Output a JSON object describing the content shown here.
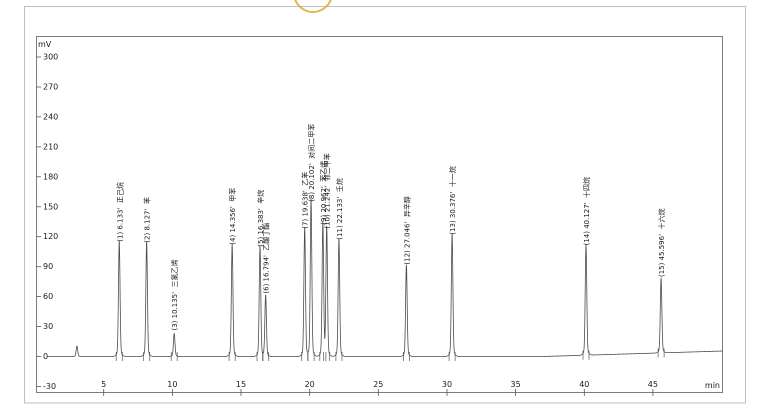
{
  "page": {
    "watermark_color": "#d9b43e",
    "trace_color": "#4d4d4d",
    "frame_color": "#bfbfbf"
  },
  "chart_data": {
    "type": "line",
    "title": "",
    "ylabel": "mV",
    "xlabel": "min",
    "ylim": [
      -30,
      310
    ],
    "xlim": [
      0.9,
      50.1
    ],
    "yticks": [
      300,
      270,
      240,
      210,
      180,
      150,
      120,
      90,
      60,
      30,
      0,
      -30
    ],
    "xticks": [
      5,
      10,
      15,
      20,
      25,
      30,
      35,
      40,
      45
    ],
    "grid": false,
    "legend": null,
    "baseline": {
      "level_mv": 0,
      "drift_start_min": 37,
      "drift_end_mv": 5.5
    },
    "peaks": [
      {
        "n": null,
        "rt": 3.05,
        "height_mv": 10,
        "name": null,
        "label": ""
      },
      {
        "n": 1,
        "rt": 6.133,
        "height_mv": 111,
        "name": "正己烷",
        "label": "(1) 6.133'  正己烷"
      },
      {
        "n": 2,
        "rt": 8.127,
        "height_mv": 110,
        "name": "苯",
        "label": "(2) 8.127'  苯"
      },
      {
        "n": 3,
        "rt": 10.135,
        "height_mv": 22,
        "name": "三氯乙烯",
        "label": "(3) 10.135'  三氯乙烯"
      },
      {
        "n": 4,
        "rt": 14.356,
        "height_mv": 108,
        "name": "甲苯",
        "label": "(4) 14.356'  甲苯"
      },
      {
        "n": 5,
        "rt": 16.383,
        "height_mv": 106,
        "name": "辛烷",
        "label": "(5) 16.383'  辛烷"
      },
      {
        "n": 6,
        "rt": 16.794,
        "height_mv": 59,
        "name": "乙酸丁酯",
        "label": "(6) 16.794'  乙酸丁酯"
      },
      {
        "n": 7,
        "rt": 19.638,
        "height_mv": 124,
        "name": "乙苯",
        "label": "(7) 19.638'  乙苯"
      },
      {
        "n": 8,
        "rt": 20.102,
        "height_mv": 151,
        "name": "对间二甲苯",
        "label": "(8) 20.102'  对间二甲苯"
      },
      {
        "n": 9,
        "rt": 20.962,
        "height_mv": 128,
        "name": "苯乙烯",
        "label": "(9) 20.962'  苯乙烯"
      },
      {
        "n": 10,
        "rt": 21.242,
        "height_mv": 124,
        "name": "邻二甲苯",
        "label": "(10) 21.242'  邻二甲苯"
      },
      {
        "n": 11,
        "rt": 22.133,
        "height_mv": 113,
        "name": "壬烷",
        "label": "(11) 22.133'  壬烷"
      },
      {
        "n": 12,
        "rt": 27.046,
        "height_mv": 88,
        "name": "异辛醇",
        "label": "(12) 27.046'  异辛醇"
      },
      {
        "n": 13,
        "rt": 30.376,
        "height_mv": 118,
        "name": "十一烷",
        "label": "(13) 30.376'  十一烷"
      },
      {
        "n": 14,
        "rt": 40.127,
        "height_mv": 106,
        "name": "十四烷",
        "label": "(14) 40.127'  十四烷"
      },
      {
        "n": 15,
        "rt": 45.596,
        "height_mv": 72,
        "name": "十六烷",
        "label": "(15) 45.596'  十六烷"
      }
    ]
  }
}
